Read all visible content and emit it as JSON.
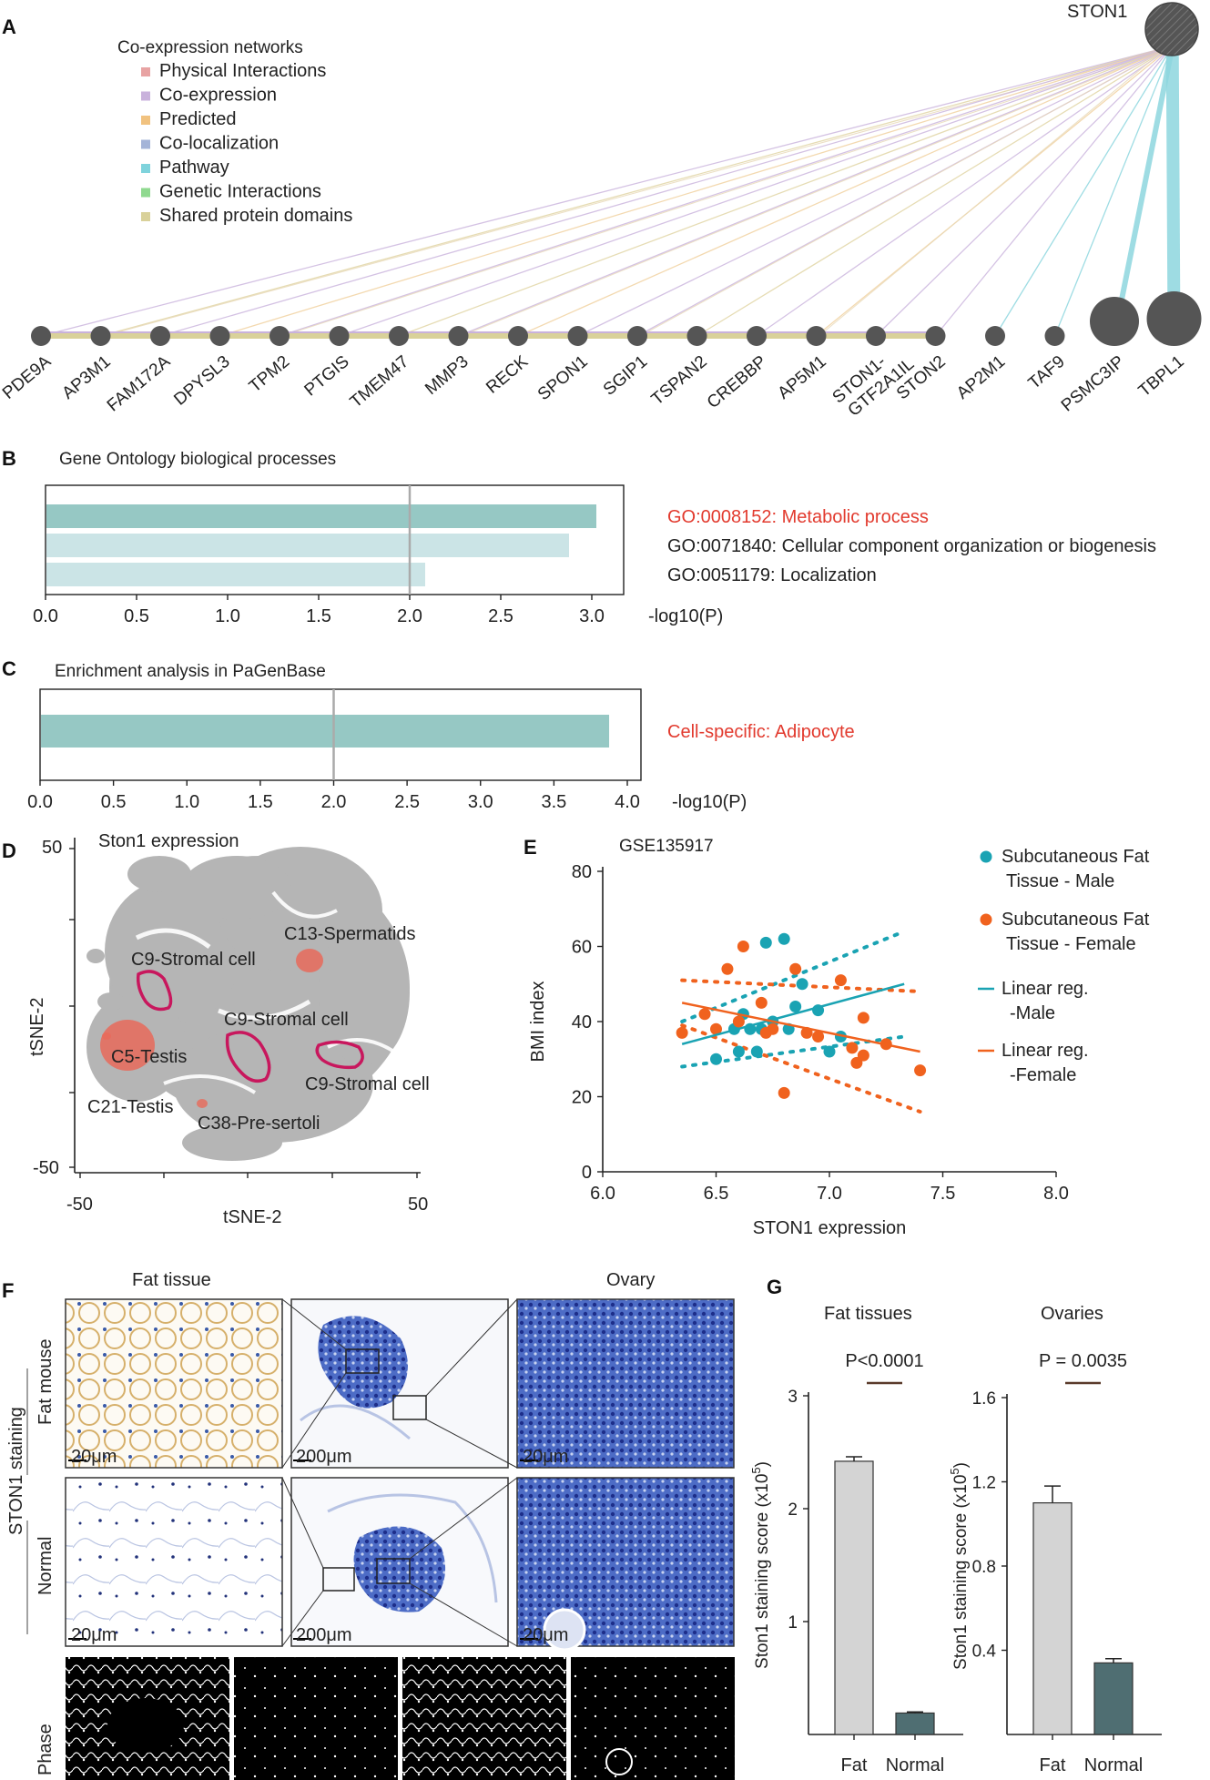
{
  "panels": {
    "A": {
      "label": "A",
      "hub": "STON1",
      "legend_title": "Co-expression networks",
      "legend": [
        {
          "label": "Physical Interactions",
          "color": "#e8a3a3"
        },
        {
          "label": "Co-expression",
          "color": "#c9b2dc"
        },
        {
          "label": "Predicted",
          "color": "#f1c27f"
        },
        {
          "label": "Co-localization",
          "color": "#a4b4d8"
        },
        {
          "label": "Pathway",
          "color": "#7fd3dc"
        },
        {
          "label": "Genetic Interactions",
          "color": "#8fd98f"
        },
        {
          "label": "Shared protein domains",
          "color": "#d9d19a"
        }
      ],
      "genes": [
        "PDE9A",
        "AP3M1",
        "FAM172A",
        "DPYSL3",
        "TPM2",
        "PTGIS",
        "TMEM47",
        "MMP3",
        "RECK",
        "SPON1",
        "SGIP1",
        "TSPAN2",
        "CREBBP",
        "AP5M1",
        "STON1-\nGTF2A1IL",
        "STON2",
        "AP2M1",
        "TAF9",
        "PSMC3IP",
        "TBPL1"
      ]
    },
    "B": {
      "label": "B",
      "title": "Gene Ontology biological processes",
      "axis_label": "-log10(P)",
      "terms": [
        {
          "label": "GO:0008152: Metabolic process",
          "highlight": true
        },
        {
          "label": "GO:0071840: Cellular component organization or biogenesis",
          "highlight": false
        },
        {
          "label": "GO:0051179: Localization",
          "highlight": false
        }
      ]
    },
    "C": {
      "label": "C",
      "title": "Enrichment analysis in PaGenBase",
      "axis_label": "-log10(P)",
      "term": "Cell-specific: Adipocyte"
    },
    "D": {
      "label": "D",
      "title": "Ston1 expression",
      "xlabel": "tSNE-2",
      "ylabel": "tSNE-2",
      "xticks": [
        "-50",
        "50"
      ],
      "yticks": [
        "50",
        "-50"
      ],
      "clusters": [
        "C13-Spermatids",
        "C9-Stromal cell",
        "C9-Stromal cell",
        "C5-Testis",
        "C9-Stromal cell",
        "C21-Testis",
        "C38-Pre-sertoli"
      ]
    },
    "E": {
      "label": "E",
      "title": "GSE135917",
      "legend": [
        {
          "label": "Subcutaneous Fat\nTissue - Male",
          "color": "#1aa3b3",
          "kind": "dot"
        },
        {
          "label": "Subcutaneous Fat\nTissue - Female",
          "color": "#f0621e",
          "kind": "dot"
        },
        {
          "label": "Linear reg.\n-Male",
          "color": "#1aa3b3",
          "kind": "line"
        },
        {
          "label": "Linear reg.\n-Female",
          "color": "#f0621e",
          "kind": "line"
        }
      ]
    },
    "F": {
      "label": "F",
      "col_fat": "Fat tissue",
      "col_ovary": "Ovary",
      "row_group": "STON1 staining",
      "row_fat": "Fat mouse",
      "row_normal": "Normal",
      "row_phase": "Phase",
      "scales": [
        "20μm",
        "200μm",
        "20μm",
        "20μm",
        "200μm",
        "20μm"
      ]
    },
    "G": {
      "label": "G",
      "fat_title": "Fat tissues",
      "ovary_title": "Ovaries",
      "fat_p": "P<0.0001",
      "ovary_p": "P = 0.0035"
    }
  },
  "chart_data": [
    {
      "type": "bar",
      "title": "Gene Ontology biological processes",
      "categories": [
        "GO:0008152: Metabolic process",
        "GO:0071840: Cellular component organization or biogenesis",
        "GO:0051179: Localization"
      ],
      "values": [
        3.02,
        2.87,
        2.08
      ],
      "xlabel": "-log10(P)",
      "xlim": [
        0,
        3.1
      ],
      "xticks": [
        "0.0",
        "0.5",
        "1.0",
        "1.5",
        "2.0",
        "2.5",
        "3.0"
      ],
      "threshold": 2.0,
      "colors": [
        "#96c8c4",
        "#cbe4e6",
        "#cbe4e6"
      ]
    },
    {
      "type": "bar",
      "title": "Enrichment analysis in PaGenBase",
      "categories": [
        "Cell-specific: Adipocyte"
      ],
      "values": [
        3.87
      ],
      "xlabel": "-log10(P)",
      "xlim": [
        0,
        4.0
      ],
      "xticks": [
        "0.0",
        "0.5",
        "1.0",
        "1.5",
        "2.0",
        "2.5",
        "3.0",
        "3.5",
        "4.0"
      ],
      "threshold": 2.0,
      "colors": [
        "#96c8c4"
      ]
    },
    {
      "type": "scatter",
      "title": "GSE135917",
      "xlabel": "STON1 expression",
      "ylabel": "BMI index",
      "xlim": [
        6.0,
        8.0
      ],
      "ylim": [
        0,
        80
      ],
      "xticks": [
        "6.0",
        "6.5",
        "7.0",
        "7.5",
        "8.0"
      ],
      "yticks": [
        "0",
        "20",
        "40",
        "60",
        "80"
      ],
      "series": [
        {
          "name": "Subcutaneous Fat Tissue - Male",
          "color": "#1aa3b3",
          "points": [
            [
              6.5,
              30
            ],
            [
              6.6,
              32
            ],
            [
              6.62,
              42
            ],
            [
              6.65,
              38
            ],
            [
              6.7,
              38
            ],
            [
              6.72,
              61
            ],
            [
              6.75,
              40
            ],
            [
              6.8,
              62
            ],
            [
              6.82,
              38
            ],
            [
              6.85,
              44
            ],
            [
              6.88,
              50
            ],
            [
              6.95,
              43
            ],
            [
              7.0,
              32
            ],
            [
              7.05,
              36
            ],
            [
              6.58,
              38
            ],
            [
              6.68,
              32
            ]
          ]
        },
        {
          "name": "Subcutaneous Fat Tissue - Female",
          "color": "#f0621e",
          "points": [
            [
              6.35,
              37
            ],
            [
              6.45,
              42
            ],
            [
              6.5,
              38
            ],
            [
              6.55,
              54
            ],
            [
              6.6,
              40
            ],
            [
              6.62,
              60
            ],
            [
              6.7,
              45
            ],
            [
              6.75,
              38
            ],
            [
              6.8,
              21
            ],
            [
              6.85,
              54
            ],
            [
              6.9,
              37
            ],
            [
              6.95,
              36
            ],
            [
              7.05,
              51
            ],
            [
              7.1,
              33
            ],
            [
              7.15,
              41
            ],
            [
              7.15,
              31
            ],
            [
              7.25,
              34
            ],
            [
              7.4,
              27
            ],
            [
              7.12,
              29
            ],
            [
              6.72,
              37
            ]
          ]
        }
      ],
      "regressions": [
        {
          "name": "Linear reg. -Male",
          "color": "#1aa3b3",
          "x": [
            6.35,
            7.33
          ],
          "y": [
            34,
            50
          ]
        },
        {
          "name": "Linear reg. -Female",
          "color": "#f0621e",
          "x": [
            6.35,
            7.4
          ],
          "y": [
            45,
            32
          ]
        }
      ]
    },
    {
      "type": "bar",
      "title": "Fat tissues",
      "categories": [
        "Fat",
        "Normal"
      ],
      "values": [
        2.42,
        0.19
      ],
      "errors": [
        0.04,
        0.01
      ],
      "ylabel": "Ston1 staining score (x10^5)",
      "ylim": [
        0,
        3
      ],
      "yticks": [
        "1",
        "2",
        "3"
      ],
      "colors": [
        "#d4d4d4",
        "#4f6e72"
      ],
      "annotation": "P<0.0001"
    },
    {
      "type": "bar",
      "title": "Ovaries",
      "categories": [
        "Fat",
        "Normal"
      ],
      "values": [
        1.1,
        0.34
      ],
      "errors": [
        0.08,
        0.02
      ],
      "ylabel": "Ston1 staining score (x10^5)",
      "ylim": [
        0,
        1.6
      ],
      "yticks": [
        "0.4",
        "0.8",
        "1.2",
        "1.6"
      ],
      "colors": [
        "#d4d4d4",
        "#4f6e72"
      ],
      "annotation": "P = 0.0035"
    }
  ]
}
